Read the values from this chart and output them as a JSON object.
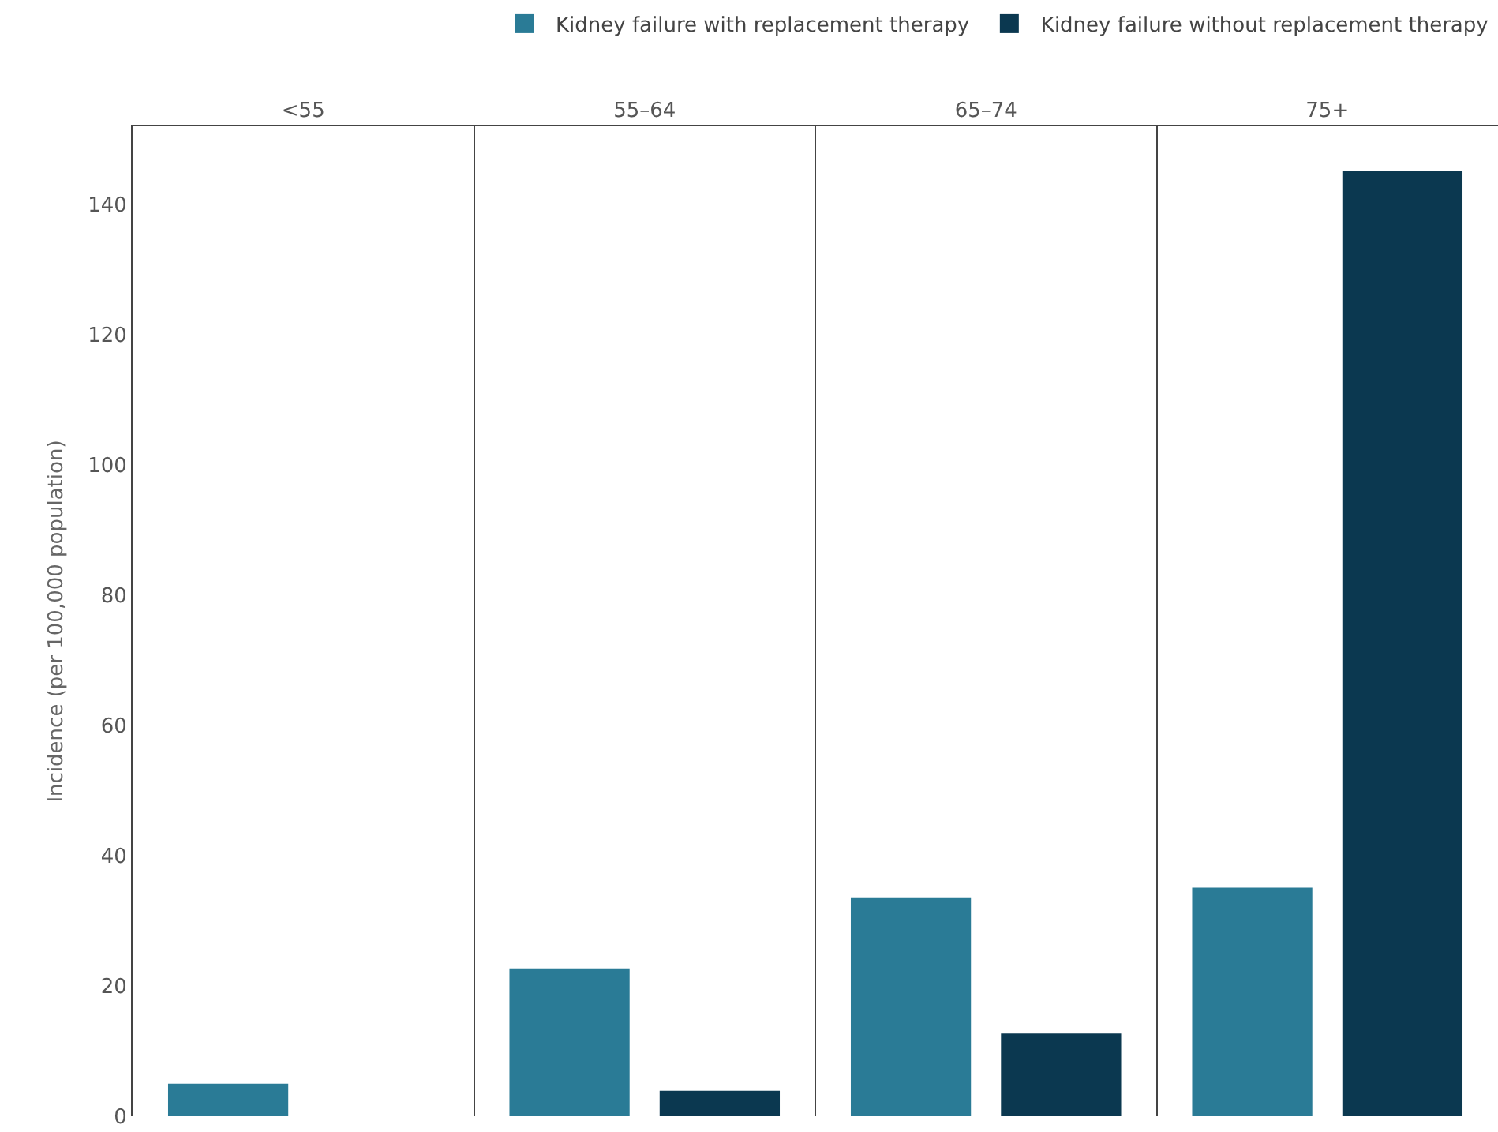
{
  "chart_data": {
    "type": "bar",
    "ylabel": "Incidence (per 100,000 population)",
    "categories": [
      "<55",
      "55–64",
      "65–74",
      "75+"
    ],
    "series": [
      {
        "name": "Kidney failure with replacement therapy",
        "color": "#2a7b96",
        "values": [
          5.0,
          22.7,
          33.6,
          35.1
        ]
      },
      {
        "name": "Kidney failure without replacement therapy",
        "color": "#0b3850",
        "values": [
          null,
          3.9,
          12.7,
          145.2
        ]
      }
    ],
    "ylim": [
      0,
      152
    ],
    "yticks": [
      0,
      20,
      40,
      60,
      80,
      100,
      120,
      140
    ],
    "grid": "x",
    "legend": "top right"
  }
}
